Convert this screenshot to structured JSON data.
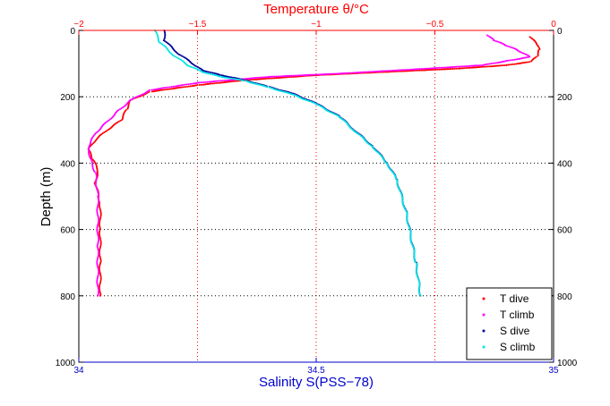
{
  "chart_data": {
    "type": "scatter",
    "title": "Temperature θ/°C",
    "xlabel": "Salinity S(PSS−78)",
    "ylabel": "Depth (m)",
    "grid": true,
    "legend_position": "bottom-right",
    "top_axis": {
      "label": "Temperature θ/°C",
      "range": [
        -2,
        0
      ],
      "ticks": [
        -2,
        -1.5,
        -1,
        -0.5,
        0
      ],
      "tick_labels": [
        "−2",
        "−1.5",
        "−1",
        "−0.5",
        "0"
      ],
      "color": "#ff0000"
    },
    "bottom_axis": {
      "label": "Salinity S(PSS−78)",
      "range": [
        34,
        35
      ],
      "ticks": [
        34,
        34.5,
        35
      ],
      "tick_labels": [
        "34",
        "34.5",
        "35"
      ],
      "color": "#0000cc"
    },
    "y_axis": {
      "range": [
        0,
        1000
      ],
      "inverted": true,
      "ticks": [
        0,
        200,
        400,
        600,
        800,
        1000
      ],
      "tick_labels": [
        "0",
        "200",
        "400",
        "600",
        "800",
        "1000"
      ]
    },
    "series": [
      {
        "name": "T dive",
        "axis": "top",
        "color": "#ff0000",
        "x": [
          -0.1,
          -0.07,
          -0.06,
          -0.07,
          -0.1,
          -0.2,
          -0.4,
          -0.7,
          -1.0,
          -1.3,
          -1.5,
          -1.7,
          -1.78,
          -1.8,
          -1.82,
          -1.88,
          -1.93,
          -1.96,
          -1.94,
          -1.92,
          -1.93,
          -1.91,
          -1.91,
          -1.91,
          -1.91
        ],
        "y": [
          20,
          40,
          60,
          80,
          95,
          105,
          115,
          125,
          135,
          150,
          165,
          185,
          210,
          240,
          270,
          300,
          330,
          360,
          390,
          420,
          460,
          520,
          600,
          700,
          800
        ]
      },
      {
        "name": "T climb",
        "axis": "top",
        "color": "#ff00ff",
        "x": [
          -0.28,
          -0.25,
          -0.2,
          -0.15,
          -0.1,
          -0.3,
          -0.6,
          -0.9,
          -1.2,
          -1.5,
          -1.7,
          -1.78,
          -1.83,
          -1.88,
          -1.93,
          -1.96,
          -1.95,
          -1.93,
          -1.92,
          -1.92,
          -1.92
        ],
        "y": [
          15,
          30,
          45,
          60,
          80,
          105,
          118,
          130,
          140,
          158,
          180,
          210,
          240,
          275,
          310,
          350,
          390,
          430,
          500,
          650,
          800
        ]
      },
      {
        "name": "S dive",
        "axis": "bottom",
        "color": "#000099",
        "x": [
          34.18,
          34.18,
          34.21,
          34.24,
          34.26,
          34.3,
          34.35,
          34.4,
          34.45,
          34.5,
          34.55,
          34.58,
          34.62,
          34.65,
          34.67,
          34.69,
          34.71,
          34.72
        ],
        "y": [
          0,
          30,
          70,
          100,
          120,
          135,
          150,
          170,
          190,
          220,
          260,
          300,
          350,
          400,
          450,
          550,
          700,
          800
        ]
      },
      {
        "name": "S climb",
        "axis": "bottom",
        "color": "#00e5e5",
        "x": [
          34.16,
          34.17,
          34.2,
          34.23,
          34.26,
          34.3,
          34.35,
          34.4,
          34.45,
          34.5,
          34.55,
          34.58,
          34.62,
          34.65,
          34.67,
          34.69,
          34.71,
          34.72
        ],
        "y": [
          0,
          35,
          75,
          105,
          125,
          140,
          152,
          172,
          193,
          222,
          262,
          302,
          352,
          402,
          452,
          552,
          702,
          800
        ]
      }
    ]
  }
}
